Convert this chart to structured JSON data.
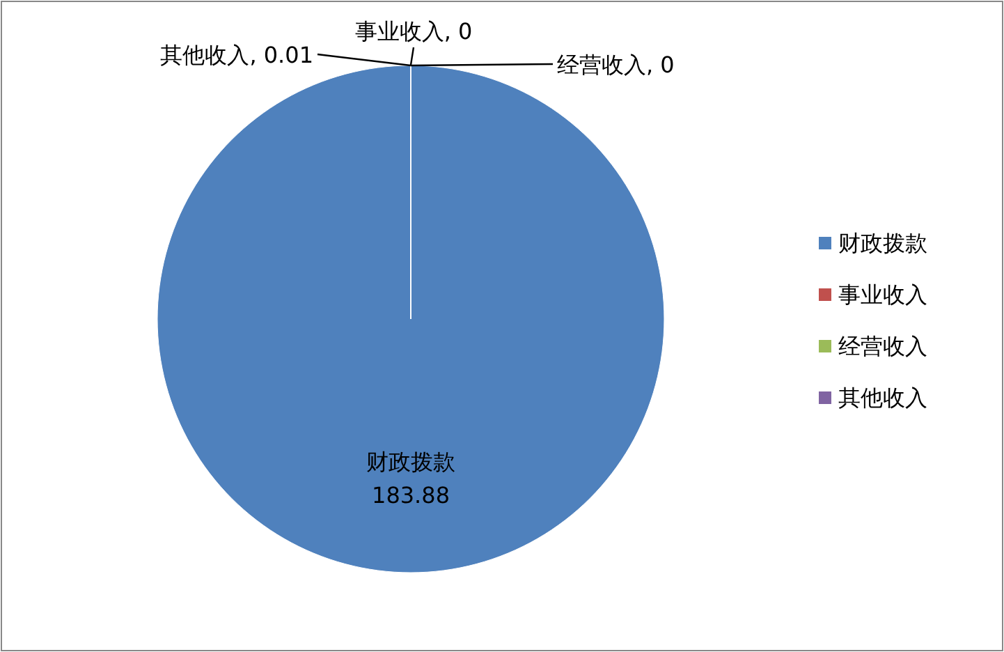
{
  "chart_data": {
    "type": "pie",
    "categories": [
      "财政拨款",
      "事业收入",
      "经营收入",
      "其他收入"
    ],
    "values": [
      183.88,
      0,
      0,
      0.01
    ],
    "value_labels": [
      "183.88",
      ", 0",
      ", 0",
      ", 0.01"
    ],
    "colors": [
      "#4f81bd",
      "#c0504d",
      "#9bbb59",
      "#8064a2"
    ],
    "legend": "right"
  }
}
